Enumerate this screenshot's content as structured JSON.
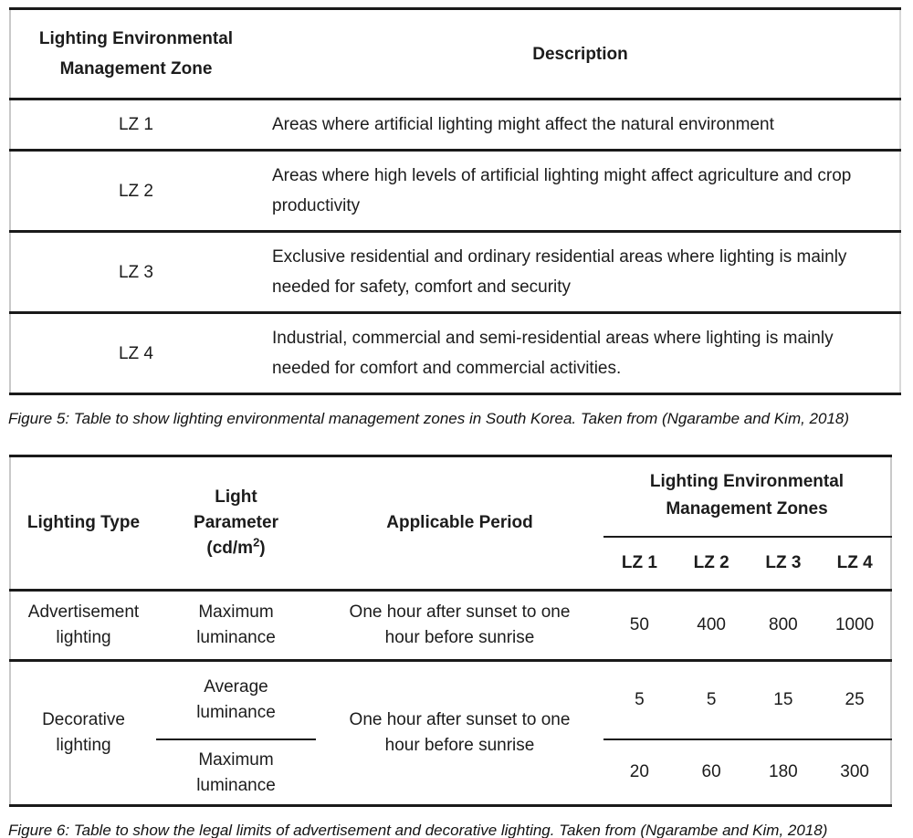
{
  "colors": {
    "background": "#ffffff",
    "text": "#1c1c1c",
    "rule": "#1a1a1a",
    "side_border": "#c9c9c9"
  },
  "table1": {
    "headers": {
      "zone": "Lighting Environmental Management Zone",
      "description": "Description"
    },
    "rows": [
      {
        "zone": "LZ 1",
        "description": "Areas where artificial lighting might affect the natural environment"
      },
      {
        "zone": "LZ 2",
        "description": "Areas where high levels of artificial lighting might affect agriculture and crop productivity"
      },
      {
        "zone": "LZ 3",
        "description": "Exclusive residential and ordinary residential areas where lighting is mainly needed for safety, comfort and security"
      },
      {
        "zone": "LZ 4",
        "description": "Industrial, commercial and semi-residential areas where lighting is mainly needed for comfort and commercial activities."
      }
    ],
    "caption": "Figure 5: Table to show lighting environmental management zones in South Korea. Taken from (Ngarambe and Kim, 2018)"
  },
  "table2": {
    "headers": {
      "lighting_type": "Lighting Type",
      "light_parameter": {
        "line1": "Light",
        "line2": "Parameter",
        "unit_prefix": "(cd/m",
        "unit_sup": "2",
        "unit_suffix": ")"
      },
      "applicable_period": "Applicable Period",
      "zones_group": "Lighting Environmental Management Zones",
      "zones": [
        "LZ 1",
        "LZ 2",
        "LZ 3",
        "LZ 4"
      ]
    },
    "rows": {
      "advertisement": {
        "type": "Advertisement lighting",
        "parameter": "Maximum luminance",
        "period": "One hour after sunset to one hour before sunrise",
        "values": [
          "50",
          "400",
          "800",
          "1000"
        ]
      },
      "decorative": {
        "type": "Decorative lighting",
        "period": "One hour after sunset to one hour before sunrise",
        "sub_rows": [
          {
            "parameter": "Average luminance",
            "values": [
              "5",
              "5",
              "15",
              "25"
            ]
          },
          {
            "parameter": "Maximum luminance",
            "values": [
              "20",
              "60",
              "180",
              "300"
            ]
          }
        ]
      }
    },
    "caption": "Figure 6: Table to show the legal limits of advertisement and decorative lighting. Taken from (Ngarambe and Kim, 2018)"
  }
}
